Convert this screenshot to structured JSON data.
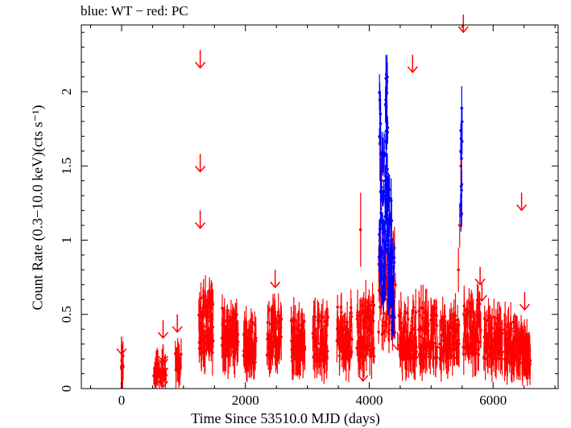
{
  "chart_data": {
    "type": "scatter",
    "title": "blue: WT − red: PC",
    "xlabel": "Time Since 53510.0 MJD (days)",
    "ylabel": "Count Rate (0.3−10.0 keV)(cts s⁻¹)",
    "xlim": [
      -650,
      7050
    ],
    "ylim": [
      0,
      2.45
    ],
    "x_ticks": [
      0,
      2000,
      4000,
      6000
    ],
    "x_tick_labels": [
      "0",
      "2000",
      "4000",
      "6000"
    ],
    "y_ticks": [
      0,
      0.5,
      1,
      1.5,
      2
    ],
    "y_tick_labels": [
      "0",
      "0.5",
      "1",
      "1.5",
      "2"
    ],
    "grid": false,
    "colors": {
      "WT": "#0000ff",
      "PC": "#ff0000"
    },
    "series": [
      {
        "name": "PC",
        "color": "#ff0000",
        "segments": [
          {
            "x_start": -5,
            "x_end": 25,
            "y_min": 0.1,
            "y_max": 0.22,
            "n": 10,
            "seed": 1
          },
          {
            "x_start": 520,
            "x_end": 720,
            "y_min": 0.06,
            "y_max": 0.15,
            "n": 16,
            "seed": 2
          },
          {
            "x_start": 870,
            "x_end": 960,
            "y_min": 0.06,
            "y_max": 0.25,
            "n": 14,
            "seed": 3
          },
          {
            "x_start": 1250,
            "x_end": 1480,
            "y_min": 0.1,
            "y_max": 0.65,
            "n": 70,
            "seed": 4
          },
          {
            "x_start": 1620,
            "x_end": 1880,
            "y_min": 0.1,
            "y_max": 0.55,
            "n": 70,
            "seed": 5
          },
          {
            "x_start": 1970,
            "x_end": 2170,
            "y_min": 0.08,
            "y_max": 0.45,
            "n": 55,
            "seed": 6
          },
          {
            "x_start": 2350,
            "x_end": 2580,
            "y_min": 0.1,
            "y_max": 0.55,
            "n": 60,
            "seed": 7
          },
          {
            "x_start": 2740,
            "x_end": 2960,
            "y_min": 0.08,
            "y_max": 0.5,
            "n": 60,
            "seed": 8
          },
          {
            "x_start": 3090,
            "x_end": 3330,
            "y_min": 0.08,
            "y_max": 0.5,
            "n": 60,
            "seed": 9
          },
          {
            "x_start": 3480,
            "x_end": 3720,
            "y_min": 0.08,
            "y_max": 0.55,
            "n": 60,
            "seed": 10
          },
          {
            "x_start": 3800,
            "x_end": 4080,
            "y_min": 0.08,
            "y_max": 0.6,
            "n": 70,
            "seed": 11
          },
          {
            "x_start": 4150,
            "x_end": 4420,
            "y_min": 0.15,
            "y_max": 1.0,
            "n": 60,
            "seed": 12
          },
          {
            "x_start": 4480,
            "x_end": 4760,
            "y_min": 0.08,
            "y_max": 0.55,
            "n": 70,
            "seed": 13
          },
          {
            "x_start": 4800,
            "x_end": 5100,
            "y_min": 0.08,
            "y_max": 0.55,
            "n": 70,
            "seed": 14
          },
          {
            "x_start": 5140,
            "x_end": 5450,
            "y_min": 0.1,
            "y_max": 0.5,
            "n": 70,
            "seed": 15
          },
          {
            "x_start": 5520,
            "x_end": 5800,
            "y_min": 0.1,
            "y_max": 0.6,
            "n": 70,
            "seed": 16
          },
          {
            "x_start": 5850,
            "x_end": 6150,
            "y_min": 0.1,
            "y_max": 0.5,
            "n": 70,
            "seed": 17
          },
          {
            "x_start": 6180,
            "x_end": 6480,
            "y_min": 0.08,
            "y_max": 0.45,
            "n": 70,
            "seed": 18
          },
          {
            "x_start": 6490,
            "x_end": 6600,
            "y_min": 0.08,
            "y_max": 0.35,
            "n": 30,
            "seed": 19
          }
        ],
        "points": [
          {
            "x": 3860,
            "y": 1.07,
            "err": 0.25
          },
          {
            "x": 4170,
            "y": 1.65,
            "err": 0.25
          },
          {
            "x": 4200,
            "y": 1.4,
            "err": 0.2
          },
          {
            "x": 5480,
            "y": 1.5,
            "err": 0.2
          },
          {
            "x": 5460,
            "y": 1.1,
            "err": 0.15
          },
          {
            "x": 5440,
            "y": 0.8,
            "err": 0.15
          }
        ],
        "upper_limits": [
          {
            "x": 0,
            "y": 0.35
          },
          {
            "x": 670,
            "y": 0.13
          },
          {
            "x": 670,
            "y": 0.22
          },
          {
            "x": 670,
            "y": 0.3
          },
          {
            "x": 670,
            "y": 0.28
          },
          {
            "x": 670,
            "y": 0.46
          },
          {
            "x": 900,
            "y": 0.5
          },
          {
            "x": 1270,
            "y": 2.28
          },
          {
            "x": 1270,
            "y": 1.58
          },
          {
            "x": 1270,
            "y": 1.2
          },
          {
            "x": 2480,
            "y": 0.8
          },
          {
            "x": 3900,
            "y": 0.17
          },
          {
            "x": 4460,
            "y": 0.38
          },
          {
            "x": 4700,
            "y": 2.25
          },
          {
            "x": 4760,
            "y": 0.32
          },
          {
            "x": 5200,
            "y": 0.36
          },
          {
            "x": 5300,
            "y": 0.36
          },
          {
            "x": 5520,
            "y": 2.52
          },
          {
            "x": 5700,
            "y": 0.36
          },
          {
            "x": 5790,
            "y": 0.82
          },
          {
            "x": 5820,
            "y": 0.71
          },
          {
            "x": 6460,
            "y": 1.32
          },
          {
            "x": 6510,
            "y": 0.65
          }
        ]
      },
      {
        "name": "WT",
        "color": "#0000ff",
        "segments": [
          {
            "x_start": 4160,
            "x_end": 4200,
            "y_min": 0.3,
            "y_max": 2.0,
            "n": 25,
            "seed": 21
          },
          {
            "x_start": 4200,
            "x_end": 4260,
            "y_min": 0.3,
            "y_max": 1.6,
            "n": 40,
            "seed": 22
          },
          {
            "x_start": 4260,
            "x_end": 4300,
            "y_min": 0.5,
            "y_max": 2.2,
            "n": 30,
            "seed": 23
          },
          {
            "x_start": 4300,
            "x_end": 4360,
            "y_min": 0.3,
            "y_max": 1.4,
            "n": 40,
            "seed": 24
          },
          {
            "x_start": 4360,
            "x_end": 4400,
            "y_min": 0.3,
            "y_max": 1.0,
            "n": 25,
            "seed": 25
          },
          {
            "x_start": 5475,
            "x_end": 5500,
            "y_min": 0.9,
            "y_max": 1.9,
            "n": 12,
            "seed": 26
          }
        ],
        "points": [
          {
            "x": 4285,
            "y": 2.07,
            "err": 0.18
          },
          {
            "x": 4180,
            "y": 1.85,
            "err": 0.15
          },
          {
            "x": 5490,
            "y": 1.55,
            "err": 0.35
          }
        ]
      }
    ]
  }
}
